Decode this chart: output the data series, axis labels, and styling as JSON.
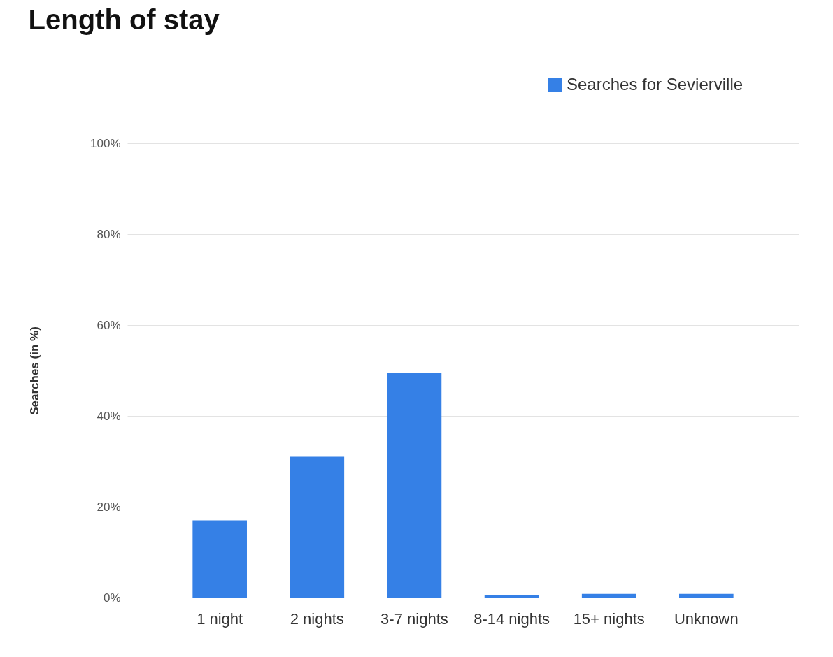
{
  "chart_data": {
    "type": "bar",
    "title": "Length of stay",
    "ylabel": "Searches (in %)",
    "categories": [
      "1 night",
      "2 nights",
      "3-7 nights",
      "8-14 nights",
      "15+ nights",
      "Unknown"
    ],
    "series": [
      {
        "name": "Searches for Sevierville",
        "color": "#3580e6",
        "values": [
          17,
          31,
          49.5,
          0.5,
          0.8,
          0.8
        ]
      }
    ],
    "ylim": [
      0,
      100
    ],
    "yticks": [
      {
        "value": 0,
        "label": "0%"
      },
      {
        "value": 20,
        "label": "20%"
      },
      {
        "value": 40,
        "label": "40%"
      },
      {
        "value": 60,
        "label": "60%"
      },
      {
        "value": 80,
        "label": "80%"
      },
      {
        "value": 100,
        "label": "100%"
      }
    ],
    "grid": "y",
    "legend": "top right"
  }
}
